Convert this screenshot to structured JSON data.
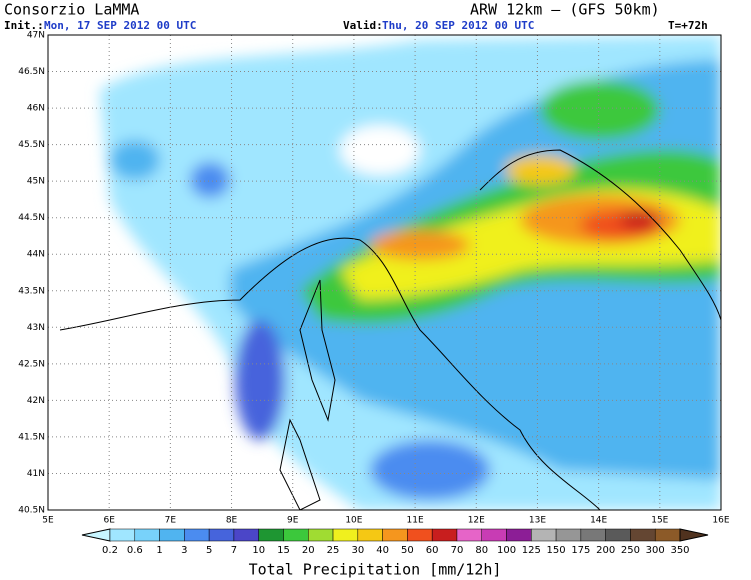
{
  "header": {
    "title": "Consorzio LaMMA",
    "model": "ARW 12km – (GFS 50km)",
    "init_label": "Init.:",
    "init": "Mon, 17 SEP 2012  00 UTC",
    "valid_label": "Valid:",
    "valid": "Thu, 20 SEP 2012  00 UTC",
    "lead": "T=+72h"
  },
  "map": {
    "lat_labels": [
      "47N",
      "46.5N",
      "46N",
      "45.5N",
      "45N",
      "44.5N",
      "44N",
      "43.5N",
      "43N",
      "42.5N",
      "42N",
      "41.5N",
      "41N",
      "40.5N"
    ],
    "lon_labels": [
      "5E",
      "6E",
      "7E",
      "8E",
      "9E",
      "10E",
      "11E",
      "12E",
      "13E",
      "14E",
      "15E",
      "16E"
    ]
  },
  "colorbar": {
    "labels": [
      "0.2",
      "0.6",
      "1",
      "3",
      "5",
      "7",
      "10",
      "15",
      "20",
      "25",
      "30",
      "40",
      "50",
      "60",
      "70",
      "80",
      "100",
      "125",
      "150",
      "175",
      "200",
      "250",
      "300",
      "350"
    ],
    "colors": [
      "#c8f5ff",
      "#a0e6ff",
      "#78d2fa",
      "#50b4f0",
      "#4b8cf0",
      "#4664dc",
      "#4b46c8",
      "#1e9632",
      "#3cc83c",
      "#a0dc32",
      "#f0f01e",
      "#f5c814",
      "#f5961e",
      "#f0501e",
      "#c81e1e",
      "#e664c8",
      "#c83cb4",
      "#8c1e96",
      "#b4b4b4",
      "#969696",
      "#787878",
      "#5a5a5a",
      "#644632",
      "#8c5a28",
      "#50321e"
    ],
    "title": "Total Precipitation [mm/12h]"
  }
}
